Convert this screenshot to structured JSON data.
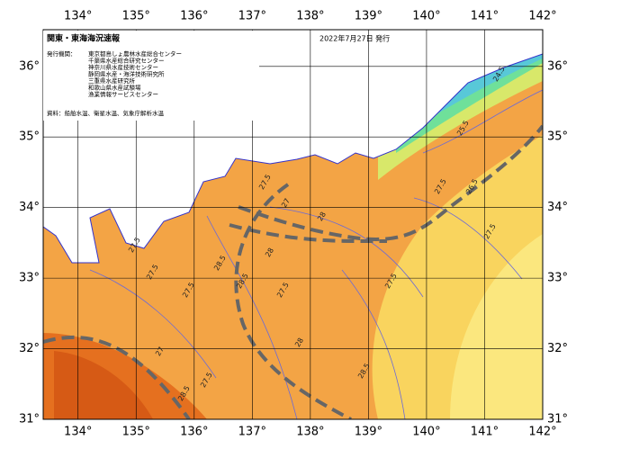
{
  "header": {
    "title": "関東・東海海況速報",
    "date": "2022年7月27日 発行"
  },
  "legend": {
    "issuer_heading": "発行機関：",
    "issuers": [
      "東京都島しょ農林水産総合センター",
      "千葉県水産総合研究センター",
      "神奈川県水産技術センター",
      "静岡県水産・海洋技術研究所",
      "三重県水産研究所",
      "和歌山県水産試験場",
      "漁業情報サービスセンター"
    ],
    "source": "資料：船舶水温、衛星水温、気象庁解析水温"
  },
  "map": {
    "xlim": [
      133.4,
      142
    ],
    "ylim": [
      31,
      36.52
    ],
    "xticks": [
      {
        "value": 134,
        "label": "134°"
      },
      {
        "value": 135,
        "label": "135°"
      },
      {
        "value": 136,
        "label": "136°"
      },
      {
        "value": 137,
        "label": "137°"
      },
      {
        "value": 138,
        "label": "138°"
      },
      {
        "value": 139,
        "label": "139°"
      },
      {
        "value": 140,
        "label": "140°"
      },
      {
        "value": 141,
        "label": "141°"
      },
      {
        "value": 142,
        "label": "142°"
      }
    ],
    "yticks": [
      {
        "value": 31,
        "label": "31°"
      },
      {
        "value": 32,
        "label": "32°"
      },
      {
        "value": 33,
        "label": "33°"
      },
      {
        "value": 34,
        "label": "34°"
      },
      {
        "value": 35,
        "label": "35°"
      },
      {
        "value": 36,
        "label": "36°"
      }
    ],
    "contour_labels": [
      "27.5",
      "27.5",
      "28.5",
      "27.5",
      "28",
      "28.5",
      "27.5",
      "27",
      "27.5",
      "28.5",
      "28",
      "27.5",
      "27.5",
      "28",
      "26.5",
      "25.5",
      "24.5",
      "27.5",
      "28.5",
      "27.5",
      "27"
    ]
  }
}
